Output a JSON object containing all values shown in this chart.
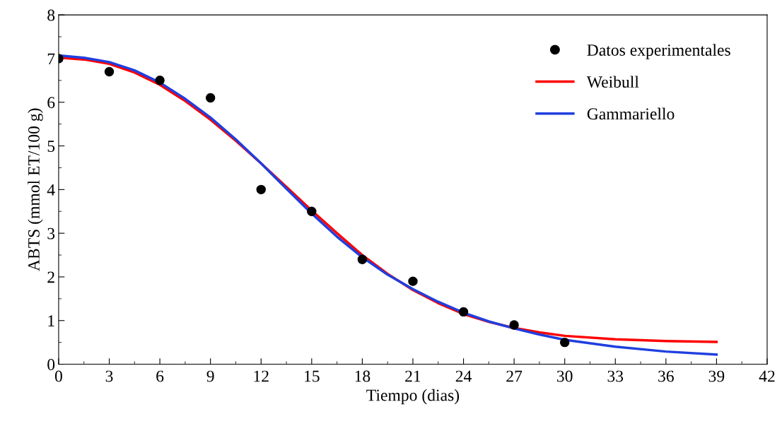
{
  "chart_data": {
    "type": "line",
    "xlabel": "Tiempo (dias)",
    "ylabel": "ABTS (mmol ET/100 g)",
    "xlim": [
      0,
      42
    ],
    "xticks": [
      0,
      3,
      6,
      9,
      12,
      15,
      18,
      21,
      24,
      27,
      30,
      33,
      36,
      39,
      42
    ],
    "ylim": [
      0,
      8
    ],
    "yticks": [
      0,
      1,
      2,
      3,
      4,
      5,
      6,
      7,
      8
    ],
    "grid": false,
    "legend": "top right",
    "series": [
      {
        "name": "Datos experimentales",
        "type": "scatter",
        "marker": "circle",
        "color": "#000000",
        "x": [
          0,
          3,
          6,
          9,
          12,
          15,
          18,
          21,
          24,
          27,
          30
        ],
        "values": [
          7.0,
          6.7,
          6.5,
          6.1,
          4.0,
          3.5,
          2.4,
          1.9,
          1.2,
          0.9,
          0.5
        ]
      },
      {
        "name": "Weibull",
        "color": "#ff0000",
        "x": [
          0,
          1.5,
          3,
          4.5,
          6,
          7.5,
          9,
          10.5,
          12,
          13.5,
          15,
          16.5,
          18,
          19.5,
          21,
          22.5,
          24,
          25.5,
          27,
          28.5,
          30,
          33,
          36,
          39
        ],
        "values": [
          7.02,
          6.98,
          6.88,
          6.68,
          6.4,
          6.03,
          5.6,
          5.12,
          4.6,
          4.06,
          3.52,
          3.0,
          2.5,
          2.07,
          1.7,
          1.4,
          1.15,
          0.97,
          0.83,
          0.73,
          0.65,
          0.57,
          0.53,
          0.51
        ]
      },
      {
        "name": "Gammariello",
        "color": "#1f3fdf",
        "x": [
          0,
          1.5,
          3,
          4.5,
          6,
          7.5,
          9,
          10.5,
          12,
          13.5,
          15,
          16.5,
          18,
          19.5,
          21,
          22.5,
          24,
          25.5,
          27,
          28.5,
          30,
          33,
          36,
          39
        ],
        "values": [
          7.07,
          7.02,
          6.92,
          6.73,
          6.45,
          6.08,
          5.65,
          5.15,
          4.6,
          4.02,
          3.45,
          2.92,
          2.45,
          2.05,
          1.72,
          1.43,
          1.18,
          0.98,
          0.82,
          0.68,
          0.56,
          0.4,
          0.29,
          0.22
        ]
      }
    ]
  }
}
